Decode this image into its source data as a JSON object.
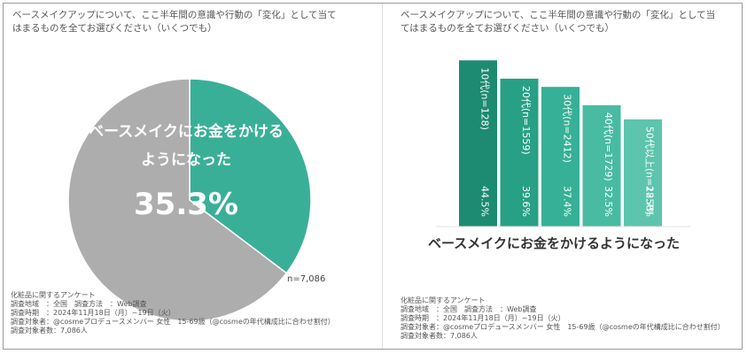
{
  "left_panel": {
    "question": "ベースメイクアップについて、ここ半年間の意識や行動の「変化」として当てはまるものを全てお選びください（いくつでも）",
    "n_label": "n=7,086",
    "notes": [
      "化粧品に関するアンケート",
      "調査地域　：全国　調査方法　：Web調査",
      "調査時期　：2024年11月18日（月）~19日（火）",
      "調査対象者：@cosmeプロデュースメンバー 女性　15-69歳（@cosmeの年代構成比に合わせ割付）",
      "調査対象者数：7,086人"
    ]
  },
  "right_panel": {
    "question": "ベースメイクアップについて、ここ半年間の意識や行動の「変化」として当てはまるものを全てお選びください（いくつでも）",
    "notes": [
      "化粧品に関するアンケート",
      "調査地域　：全国　調査方法　：Web調査",
      "調査時期　：2024年11月18日（月）~19日（火）",
      "調査対象者：@cosmeプロデュースメンバー 女性　15-69歳（@cosmeの年代構成比に合わせ割付）",
      "調査対象者数：7,086人"
    ]
  },
  "chart_data": [
    {
      "type": "pie",
      "slices": [
        {
          "label": "ベースメイクにお金をかけるようになった",
          "value": 35.3,
          "color": "#3aaf98"
        },
        {
          "label": "",
          "value": 64.7,
          "color": "#adadad"
        }
      ],
      "center_label_lines": [
        "ベースメイクにお金をかける",
        "ようになった"
      ],
      "center_value_label": "35.3%"
    },
    {
      "type": "bar",
      "title": "ベースメイクにお金をかけるようになった",
      "categories": [
        "10代(n=128)",
        "20代(n=1559)",
        "30代(n=2412)",
        "40代(n=1729)",
        "50代以上(n=1258)"
      ],
      "values": [
        44.5,
        39.6,
        37.4,
        32.5,
        28.7
      ],
      "value_labels": [
        "44.5%",
        "39.6%",
        "37.4%",
        "32.5%",
        "28.7%"
      ],
      "colors": [
        "#1d8a72",
        "#28a085",
        "#36b096",
        "#48bba2",
        "#5dc4ae"
      ],
      "ylim": [
        0,
        50
      ]
    }
  ]
}
